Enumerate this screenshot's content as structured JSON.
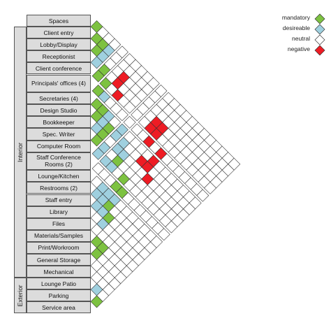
{
  "groups": [
    {
      "label": "Interior"
    },
    {
      "label": "Exterior"
    }
  ],
  "spaces": [
    "Spaces",
    "Client entry",
    "Lobby/Display",
    "Receptionist",
    "Client conference",
    "Principals' offices (4)",
    "Secretaries (4)",
    "Design Studio",
    "Bookkeeper",
    "Spec. Writer",
    "Computer Room",
    "Staff Conference Rooms (2)",
    "Lounge/Kitchen",
    "Restrooms (2)",
    "Staff entry",
    "Library",
    "Files",
    "Materials/Samples",
    "Print/Workroom",
    "General Storage",
    "Mechanical",
    "Lounge Patio",
    "Parking",
    "Service area"
  ],
  "legend": [
    {
      "label": "mandatory",
      "color": "#7dc241"
    },
    {
      "label": "desireable",
      "color": "#9fd0df"
    },
    {
      "label": "neutral",
      "color": "#ffffff"
    },
    {
      "label": "negative",
      "color": "#ee1c24"
    }
  ],
  "relationships": [
    {
      "a": 0,
      "b": 1,
      "type": "mandatory"
    },
    {
      "a": 1,
      "b": 2,
      "type": "mandatory"
    },
    {
      "a": 1,
      "b": 3,
      "type": "mandatory"
    },
    {
      "a": 2,
      "b": 3,
      "type": "mandatory"
    },
    {
      "a": 1,
      "b": 4,
      "type": "desireable"
    },
    {
      "a": 2,
      "b": 4,
      "type": "desireable"
    },
    {
      "a": 3,
      "b": 4,
      "type": "desireable"
    },
    {
      "a": 3,
      "b": 5,
      "type": "mandatory"
    },
    {
      "a": 4,
      "b": 5,
      "type": "mandatory"
    },
    {
      "a": 4,
      "b": 6,
      "type": "mandatory"
    },
    {
      "a": 5,
      "b": 6,
      "type": "mandatory"
    },
    {
      "a": 2,
      "b": 7,
      "type": "negative"
    },
    {
      "a": 3,
      "b": 7,
      "type": "negative"
    },
    {
      "a": 4,
      "b": 8,
      "type": "negative"
    },
    {
      "a": 5,
      "b": 7,
      "type": "desireable"
    },
    {
      "a": 6,
      "b": 7,
      "type": "mandatory"
    },
    {
      "a": 6,
      "b": 8,
      "type": "mandatory"
    },
    {
      "a": 7,
      "b": 8,
      "type": "mandatory"
    },
    {
      "a": 6,
      "b": 9,
      "type": "desireable"
    },
    {
      "a": 7,
      "b": 9,
      "type": "desireable"
    },
    {
      "a": 8,
      "b": 9,
      "type": "desireable"
    },
    {
      "a": 7,
      "b": 10,
      "type": "mandatory"
    },
    {
      "a": 8,
      "b": 10,
      "type": "mandatory"
    },
    {
      "a": 9,
      "b": 10,
      "type": "mandatory"
    },
    {
      "a": 6,
      "b": 11,
      "type": "desireable"
    },
    {
      "a": 7,
      "b": 11,
      "type": "desireable"
    },
    {
      "a": 9,
      "b": 11,
      "type": "desireable"
    },
    {
      "a": 10,
      "b": 11,
      "type": "desireable"
    },
    {
      "a": 7,
      "b": 12,
      "type": "desireable"
    },
    {
      "a": 8,
      "b": 12,
      "type": "desireable"
    },
    {
      "a": 10,
      "b": 12,
      "type": "desireable"
    },
    {
      "a": 8,
      "b": 13,
      "type": "desireable"
    },
    {
      "a": 9,
      "b": 13,
      "type": "mandatory"
    },
    {
      "a": 10,
      "b": 13,
      "type": "desireable"
    },
    {
      "a": 3,
      "b": 13,
      "type": "negative"
    },
    {
      "a": 4,
      "b": 13,
      "type": "negative"
    },
    {
      "a": 3,
      "b": 14,
      "type": "negative"
    },
    {
      "a": 4,
      "b": 14,
      "type": "negative"
    },
    {
      "a": 5,
      "b": 14,
      "type": "negative"
    },
    {
      "a": 5,
      "b": 16,
      "type": "negative"
    },
    {
      "a": 6,
      "b": 16,
      "type": "negative"
    },
    {
      "a": 7,
      "b": 15,
      "type": "negative"
    },
    {
      "a": 7,
      "b": 16,
      "type": "negative"
    },
    {
      "a": 8,
      "b": 17,
      "type": "negative"
    },
    {
      "a": 10,
      "b": 15,
      "type": "mandatory"
    },
    {
      "a": 11,
      "b": 15,
      "type": "mandatory"
    },
    {
      "a": 11,
      "b": 16,
      "type": "mandatory"
    },
    {
      "a": 12,
      "b": 14,
      "type": "desireable"
    },
    {
      "a": 12,
      "b": 15,
      "type": "desireable"
    },
    {
      "a": 13,
      "b": 14,
      "type": "desireable"
    },
    {
      "a": 13,
      "b": 15,
      "type": "desireable"
    },
    {
      "a": 14,
      "b": 15,
      "type": "desireable"
    },
    {
      "a": 12,
      "b": 16,
      "type": "desireable"
    },
    {
      "a": 13,
      "b": 16,
      "type": "mandatory"
    },
    {
      "a": 14,
      "b": 16,
      "type": "desireable"
    },
    {
      "a": 14,
      "b": 17,
      "type": "mandatory"
    },
    {
      "a": 15,
      "b": 17,
      "type": "desireable"
    },
    {
      "a": 17,
      "b": 18,
      "type": "mandatory"
    },
    {
      "a": 17,
      "b": 19,
      "type": "mandatory"
    },
    {
      "a": 18,
      "b": 19,
      "type": "mandatory"
    },
    {
      "a": 21,
      "b": 22,
      "type": "desireable"
    },
    {
      "a": 22,
      "b": 23,
      "type": "mandatory"
    }
  ]
}
